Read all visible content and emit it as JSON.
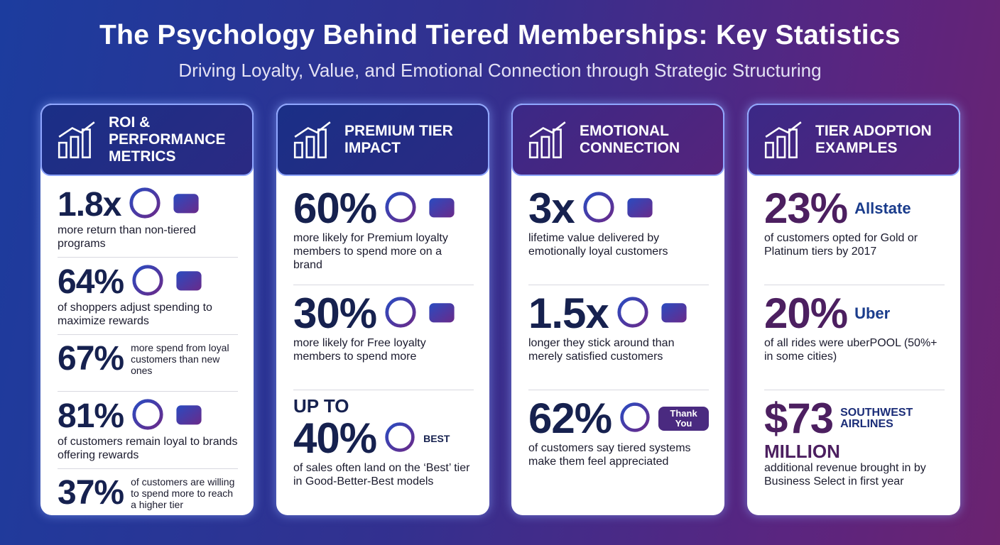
{
  "header": {
    "title": "The Psychology Behind Tiered Memberships: Key Statistics",
    "subtitle": "Driving Loyalty, Value, and Emotional Connection through Strategic Structuring"
  },
  "columns": [
    {
      "heading": "ROI & PERFORMANCE METRICS",
      "stats": [
        {
          "value": "1.8x",
          "text": "more return than non-tiered programs"
        },
        {
          "value": "64%",
          "text": "of shoppers adjust spending to maximize rewards"
        },
        {
          "value": "67%",
          "text": "more spend from loyal customers than new ones"
        },
        {
          "value": "81%",
          "text": "of customers remain loyal to brands offering rewards"
        },
        {
          "value": "37%",
          "text": "of customers are willing to spend more to reach a higher tier"
        }
      ]
    },
    {
      "heading": "PREMIUM TIER IMPACT",
      "stats": [
        {
          "value": "60%",
          "text": "more likely for Premium loyalty members to spend more on a brand"
        },
        {
          "value": "30%",
          "text": "more likely for Free loyalty members to spend more"
        },
        {
          "prefix": "UP TO",
          "value": "40%",
          "badge": "BEST",
          "text": "of sales often land on the ‘Best’ tier in Good-Better-Best models"
        }
      ]
    },
    {
      "heading": "EMOTIONAL CONNECTION",
      "stats": [
        {
          "value": "3x",
          "text": "lifetime value delivered by emotionally loyal customers"
        },
        {
          "value": "1.5x",
          "text": "longer they stick around than merely satisfied customers"
        },
        {
          "value": "62%",
          "badge": "Thank You",
          "text": "of customers say tiered systems make them feel appreciated"
        }
      ]
    },
    {
      "heading": "TIER ADOPTION EXAMPLES",
      "stats": [
        {
          "value": "23%",
          "logo": "Allstate",
          "text": "of customers opted for Gold or Platinum tiers by 2017"
        },
        {
          "value": "20%",
          "logo": "Uber",
          "text": "of all rides were uberPOOL (50%+ in some cities)"
        },
        {
          "value": "$73",
          "suffix": "MILLION",
          "logo": "SOUTHWEST AIRLINES",
          "text": "additional revenue brought in by Business Select in first year"
        }
      ]
    }
  ]
}
